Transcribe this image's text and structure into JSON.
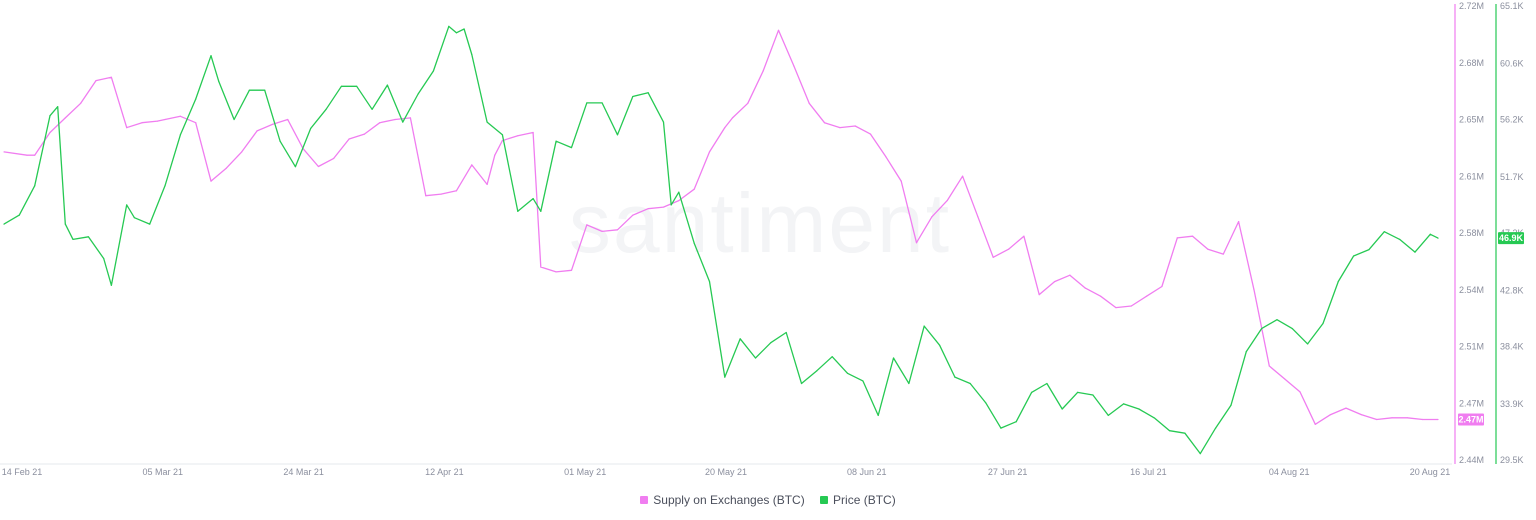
{
  "watermark": "santiment",
  "chart_data": {
    "type": "line",
    "x_ticks": [
      "14 Feb 21",
      "05 Mar 21",
      "24 Mar 21",
      "12 Apr 21",
      "01 May 21",
      "20 May 21",
      "08 Jun 21",
      "27 Jun 21",
      "16 Jul 21",
      "04 Aug 21",
      "20 Aug 21"
    ],
    "x_range": [
      "2021-02-14",
      "2021-08-20"
    ],
    "y_left_label": "",
    "axes": {
      "supply": {
        "side": "right-inner",
        "color": "#f07df0",
        "ylim": [
          2.44,
          2.72
        ],
        "ticks": [
          "2.72M",
          "2.68M",
          "2.65M",
          "2.61M",
          "2.58M",
          "2.54M",
          "2.51M",
          "2.47M",
          "2.44M"
        ],
        "tick_values": [
          2.72,
          2.685,
          2.65,
          2.615,
          2.58,
          2.545,
          2.51,
          2.475,
          2.44
        ]
      },
      "price": {
        "side": "right-outer",
        "color": "#26c953",
        "ylim": [
          29.5,
          65.1
        ],
        "ticks": [
          "65.1K",
          "60.6K",
          "56.2K",
          "51.7K",
          "47.3K",
          "42.8K",
          "38.4K",
          "33.9K",
          "29.5K"
        ],
        "tick_values": [
          65.1,
          60.6,
          56.2,
          51.7,
          47.3,
          42.8,
          38.4,
          33.9,
          29.5
        ]
      }
    },
    "current_badges": {
      "supply": "2.47M",
      "price": "46.9K"
    },
    "series": [
      {
        "name": "Supply on Exchanges (BTC)",
        "color": "#f07df0",
        "axis": "supply",
        "x": [
          "2021-02-14",
          "2021-02-17",
          "2021-02-18",
          "2021-02-20",
          "2021-02-22",
          "2021-02-24",
          "2021-02-26",
          "2021-02-28",
          "2021-03-02",
          "2021-03-04",
          "2021-03-06",
          "2021-03-07",
          "2021-03-09",
          "2021-03-11",
          "2021-03-13",
          "2021-03-15",
          "2021-03-17",
          "2021-03-19",
          "2021-03-21",
          "2021-03-23",
          "2021-03-25",
          "2021-03-27",
          "2021-03-29",
          "2021-03-31",
          "2021-04-02",
          "2021-04-04",
          "2021-04-06",
          "2021-04-08",
          "2021-04-10",
          "2021-04-12",
          "2021-04-14",
          "2021-04-16",
          "2021-04-18",
          "2021-04-19",
          "2021-04-20",
          "2021-04-22",
          "2021-04-24",
          "2021-04-25",
          "2021-04-27",
          "2021-04-29",
          "2021-05-01",
          "2021-05-03",
          "2021-05-05",
          "2021-05-07",
          "2021-05-09",
          "2021-05-11",
          "2021-05-13",
          "2021-05-15",
          "2021-05-17",
          "2021-05-19",
          "2021-05-20",
          "2021-05-22",
          "2021-05-24",
          "2021-05-26",
          "2021-05-28",
          "2021-05-30",
          "2021-06-01",
          "2021-06-03",
          "2021-06-05",
          "2021-06-07",
          "2021-06-09",
          "2021-06-11",
          "2021-06-13",
          "2021-06-15",
          "2021-06-17",
          "2021-06-19",
          "2021-06-21",
          "2021-06-23",
          "2021-06-25",
          "2021-06-27",
          "2021-06-29",
          "2021-07-01",
          "2021-07-03",
          "2021-07-05",
          "2021-07-07",
          "2021-07-09",
          "2021-07-11",
          "2021-07-13",
          "2021-07-15",
          "2021-07-17",
          "2021-07-19",
          "2021-07-21",
          "2021-07-23",
          "2021-07-25",
          "2021-07-27",
          "2021-07-29",
          "2021-07-31",
          "2021-08-02",
          "2021-08-04",
          "2021-08-06",
          "2021-08-08",
          "2021-08-10",
          "2021-08-12",
          "2021-08-14",
          "2021-08-16",
          "2021-08-18",
          "2021-08-20"
        ],
        "values": [
          2.63,
          2.628,
          2.628,
          2.642,
          2.651,
          2.66,
          2.674,
          2.676,
          2.645,
          2.648,
          2.649,
          2.65,
          2.652,
          2.648,
          2.612,
          2.62,
          2.63,
          2.643,
          2.647,
          2.65,
          2.632,
          2.621,
          2.626,
          2.638,
          2.641,
          2.648,
          2.65,
          2.651,
          2.603,
          2.604,
          2.606,
          2.622,
          2.61,
          2.628,
          2.637,
          2.64,
          2.642,
          2.559,
          2.556,
          2.557,
          2.585,
          2.581,
          2.582,
          2.591,
          2.595,
          2.596,
          2.6,
          2.607,
          2.63,
          2.645,
          2.651,
          2.66,
          2.68,
          2.705,
          2.683,
          2.66,
          2.648,
          2.645,
          2.646,
          2.641,
          2.627,
          2.612,
          2.574,
          2.59,
          2.6,
          2.615,
          2.59,
          2.565,
          2.57,
          2.578,
          2.542,
          2.55,
          2.554,
          2.546,
          2.541,
          2.534,
          2.535,
          2.541,
          2.547,
          2.577,
          2.578,
          2.57,
          2.567,
          2.587,
          2.545,
          2.498,
          2.49,
          2.482,
          2.462,
          2.468,
          2.472,
          2.468,
          2.465,
          2.466,
          2.466,
          2.465,
          2.465
        ]
      },
      {
        "name": "Price (BTC)",
        "color": "#26c953",
        "axis": "price",
        "x": [
          "2021-02-14",
          "2021-02-16",
          "2021-02-18",
          "2021-02-20",
          "2021-02-21",
          "2021-02-22",
          "2021-02-23",
          "2021-02-25",
          "2021-02-27",
          "2021-02-28",
          "2021-03-02",
          "2021-03-03",
          "2021-03-05",
          "2021-03-07",
          "2021-03-09",
          "2021-03-11",
          "2021-03-13",
          "2021-03-14",
          "2021-03-16",
          "2021-03-18",
          "2021-03-20",
          "2021-03-22",
          "2021-03-24",
          "2021-03-26",
          "2021-03-28",
          "2021-03-30",
          "2021-04-01",
          "2021-04-03",
          "2021-04-05",
          "2021-04-07",
          "2021-04-09",
          "2021-04-11",
          "2021-04-13",
          "2021-04-14",
          "2021-04-15",
          "2021-04-16",
          "2021-04-18",
          "2021-04-20",
          "2021-04-22",
          "2021-04-24",
          "2021-04-25",
          "2021-04-27",
          "2021-04-29",
          "2021-05-01",
          "2021-05-03",
          "2021-05-05",
          "2021-05-07",
          "2021-05-09",
          "2021-05-11",
          "2021-05-12",
          "2021-05-13",
          "2021-05-15",
          "2021-05-17",
          "2021-05-19",
          "2021-05-21",
          "2021-05-23",
          "2021-05-25",
          "2021-05-27",
          "2021-05-29",
          "2021-05-31",
          "2021-06-02",
          "2021-06-04",
          "2021-06-06",
          "2021-06-08",
          "2021-06-10",
          "2021-06-12",
          "2021-06-14",
          "2021-06-16",
          "2021-06-18",
          "2021-06-20",
          "2021-06-22",
          "2021-06-24",
          "2021-06-26",
          "2021-06-28",
          "2021-06-30",
          "2021-07-02",
          "2021-07-04",
          "2021-07-06",
          "2021-07-08",
          "2021-07-10",
          "2021-07-12",
          "2021-07-14",
          "2021-07-16",
          "2021-07-18",
          "2021-07-20",
          "2021-07-22",
          "2021-07-24",
          "2021-07-26",
          "2021-07-28",
          "2021-07-30",
          "2021-08-01",
          "2021-08-03",
          "2021-08-05",
          "2021-08-07",
          "2021-08-09",
          "2021-08-11",
          "2021-08-13",
          "2021-08-15",
          "2021-08-17",
          "2021-08-19",
          "2021-08-20"
        ],
        "values": [
          48.0,
          48.7,
          51.0,
          56.5,
          57.2,
          48.0,
          46.8,
          47.0,
          45.3,
          43.2,
          49.5,
          48.5,
          48.0,
          51.0,
          55.0,
          57.8,
          61.2,
          59.2,
          56.2,
          58.5,
          58.5,
          54.5,
          52.5,
          55.5,
          57.0,
          58.8,
          58.8,
          57.0,
          58.9,
          56.0,
          58.2,
          60.0,
          63.5,
          63.0,
          63.3,
          61.3,
          56.0,
          55.0,
          49.0,
          50.0,
          49.0,
          54.5,
          54.0,
          57.5,
          57.5,
          55.0,
          58.0,
          58.3,
          56.0,
          49.5,
          50.5,
          46.5,
          43.5,
          36.0,
          39.0,
          37.5,
          38.7,
          39.5,
          35.5,
          36.5,
          37.6,
          36.3,
          35.7,
          33.0,
          37.5,
          35.5,
          40.0,
          38.5,
          36.0,
          35.5,
          34.0,
          32.0,
          32.5,
          34.8,
          35.5,
          33.5,
          34.8,
          34.6,
          33.0,
          33.9,
          33.5,
          32.8,
          31.8,
          31.6,
          30.0,
          32.0,
          33.8,
          38.0,
          39.8,
          40.5,
          39.8,
          38.6,
          40.2,
          43.5,
          45.5,
          46.0,
          47.4,
          46.8,
          45.8,
          47.2,
          46.9
        ]
      }
    ]
  }
}
